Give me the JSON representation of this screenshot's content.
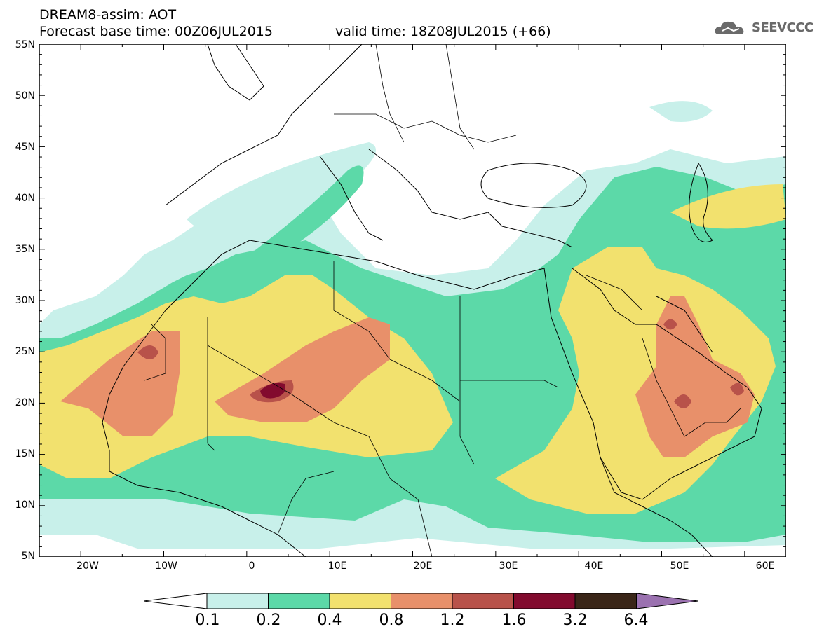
{
  "header": {
    "line1": "DREAM8-assim: AOT",
    "line2": "Forecast base time: 00Z06JUL2015",
    "valid": "valid time: 18Z08JUL2015 (+66)",
    "logo_text": "SEEVCCC"
  },
  "map": {
    "lon_range": [
      -25,
      65
    ],
    "lat_range": [
      5,
      55
    ],
    "lat_ticks": [
      "55N",
      "50N",
      "45N",
      "40N",
      "35N",
      "30N",
      "25N",
      "20N",
      "15N",
      "10N",
      "5N"
    ],
    "lat_values": [
      55,
      50,
      45,
      40,
      35,
      30,
      25,
      20,
      15,
      10,
      5
    ],
    "lon_ticks": [
      "20W",
      "10W",
      "0",
      "10E",
      "20E",
      "30E",
      "40E",
      "50E",
      "60E"
    ],
    "lon_values": [
      -20,
      -10,
      0,
      10,
      20,
      30,
      40,
      50,
      60
    ],
    "variable": "AOT"
  },
  "colorbar": {
    "levels": [
      "0.1",
      "0.2",
      "0.4",
      "0.8",
      "1.2",
      "1.6",
      "3.2",
      "6.4"
    ],
    "colors": [
      "#ffffff",
      "#c8f0ea",
      "#5cd9a8",
      "#f2e16e",
      "#e8906a",
      "#b8524a",
      "#820a2e",
      "#3a2618",
      "#9b72b0"
    ]
  }
}
